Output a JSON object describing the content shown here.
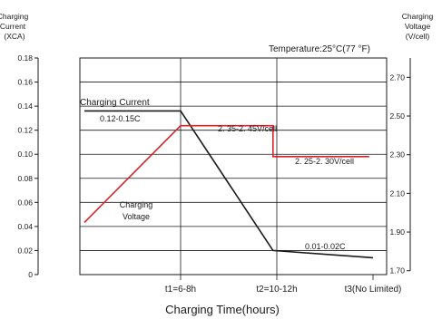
{
  "chart_data": {
    "type": "line",
    "left_axis_title": [
      "Charging",
      "Current",
      "(XCA)"
    ],
    "right_axis_title": [
      "Charging",
      "Voltage",
      "(V/cell)"
    ],
    "xlabel": "Charging Time(hours)",
    "annotation_temperature": "Temperature:25°C(77  °F)",
    "x_tick_labels": [
      "t1=6-8h",
      "t2=10-12h",
      "t3(No Limited)"
    ],
    "left_ticks": [
      {
        "value": 0,
        "label": "0"
      },
      {
        "value": 0.02,
        "label": "0.02"
      },
      {
        "value": 0.04,
        "label": "0.04"
      },
      {
        "value": 0.06,
        "label": "0.06"
      },
      {
        "value": 0.08,
        "label": "0.08"
      },
      {
        "value": 0.1,
        "label": "0.10"
      },
      {
        "value": 0.12,
        "label": "0.12"
      },
      {
        "value": 0.14,
        "label": "0.14"
      },
      {
        "value": 0.16,
        "label": "0.16"
      },
      {
        "value": 0.18,
        "label": "0.18"
      }
    ],
    "left_ylim": [
      0,
      0.18
    ],
    "right_ticks": [
      {
        "value": 1.7,
        "label": "1.70"
      },
      {
        "value": 1.9,
        "label": "1.90"
      },
      {
        "value": 2.1,
        "label": "2.10"
      },
      {
        "value": 2.3,
        "label": "2.30"
      },
      {
        "value": 2.5,
        "label": "2.50"
      },
      {
        "value": 2.7,
        "label": "2.70"
      }
    ],
    "right_ylim": [
      1.68,
      2.8
    ],
    "x_units": {
      "t1": 1,
      "t2": 2,
      "t3": 3
    },
    "grid": true,
    "series": [
      {
        "name": "Charging Current",
        "color": "#1a1a1a",
        "axis": "left",
        "points": [
          [
            0,
            0.136
          ],
          [
            1,
            0.136
          ],
          [
            1.96,
            0.02
          ],
          [
            3,
            0.014
          ]
        ]
      },
      {
        "name": "Charging Voltage",
        "color": "#d8232a",
        "axis": "right",
        "points": [
          [
            0,
            1.95
          ],
          [
            1,
            2.45
          ],
          [
            1.96,
            2.45
          ],
          [
            1.96,
            2.29
          ],
          [
            2.96,
            2.29
          ]
        ]
      }
    ],
    "annotations": [
      {
        "text": "Charging Current",
        "color": "#1a1a1a"
      },
      {
        "text": "0.12-0.15C",
        "color": "#1a1a1a"
      },
      {
        "text": "2. 35-2. 45V/cell",
        "color": "#d8232a"
      },
      {
        "text": "2. 25-2. 30V/cell",
        "color": "#d8232a"
      },
      {
        "text": "Charging",
        "color": "#d8232a"
      },
      {
        "text": "Voltage",
        "color": "#d8232a"
      },
      {
        "text": "0.01-0.02C",
        "color": "#1a1a1a"
      }
    ]
  }
}
